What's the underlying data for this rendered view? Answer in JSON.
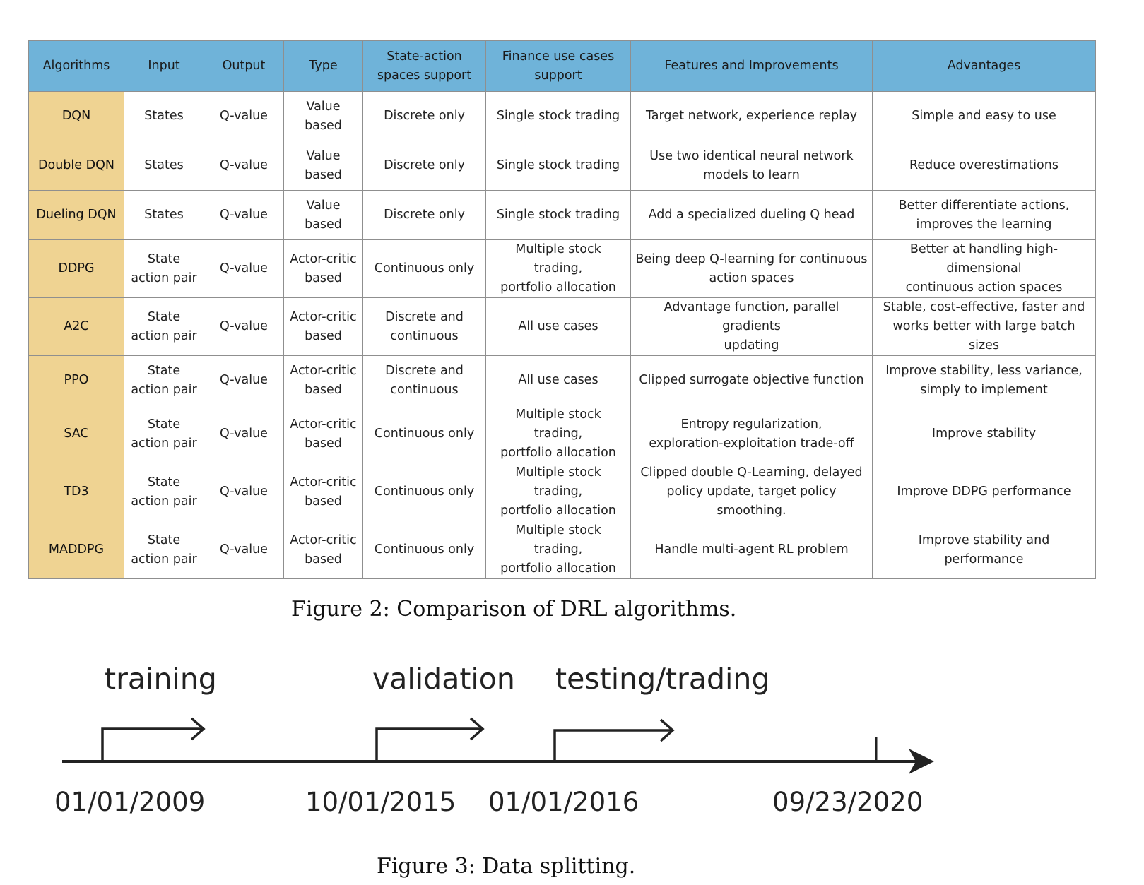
{
  "table": {
    "headers": [
      "Algorithms",
      "Input",
      "Output",
      "Type",
      "State-action\nspaces support",
      "Finance use cases\nsupport",
      "Features and Improvements",
      "Advantages"
    ],
    "rows": [
      [
        "DQN",
        "States",
        "Q-value",
        "Value\nbased",
        "Discrete only",
        "Single stock trading",
        "Target network, experience replay",
        "Simple and easy to use"
      ],
      [
        "Double DQN",
        "States",
        "Q-value",
        "Value\nbased",
        "Discrete only",
        "Single stock trading",
        "Use two identical neural network\nmodels to learn",
        "Reduce overestimations"
      ],
      [
        "Dueling DQN",
        "States",
        "Q-value",
        "Value\nbased",
        "Discrete only",
        "Single stock trading",
        "Add a specialized dueling Q head",
        "Better differentiate actions,\nimproves the learning"
      ],
      [
        "DDPG",
        "State\naction pair",
        "Q-value",
        "Actor-critic\nbased",
        "Continuous only",
        "Multiple stock trading,\nportfolio allocation",
        "Being deep Q-learning for continuous\naction spaces",
        "Better at handling high-dimensional\ncontinuous action spaces"
      ],
      [
        "A2C",
        "State\naction pair",
        "Q-value",
        "Actor-critic\nbased",
        "Discrete and\ncontinuous",
        "All use cases",
        "Advantage function, parallel gradients\nupdating",
        "Stable, cost-effective, faster and\nworks better with large batch sizes"
      ],
      [
        "PPO",
        "State\naction pair",
        "Q-value",
        "Actor-critic\nbased",
        "Discrete and\ncontinuous",
        "All use cases",
        "Clipped surrogate objective function",
        "Improve stability, less variance,\nsimply to implement"
      ],
      [
        "SAC",
        "State\naction pair",
        "Q-value",
        "Actor-critic\nbased",
        "Continuous only",
        "Multiple stock trading,\nportfolio allocation",
        "Entropy regularization,\nexploration-exploitation trade-off",
        "Improve stability"
      ],
      [
        "TD3",
        "State\naction pair",
        "Q-value",
        "Actor-critic\nbased",
        "Continuous only",
        "Multiple stock trading,\nportfolio allocation",
        "Clipped double Q-Learning, delayed\npolicy update, target policy smoothing.",
        "Improve DDPG performance"
      ],
      [
        "MADDPG",
        "State\naction pair",
        "Q-value",
        "Actor-critic\nbased",
        "Continuous only",
        "Multiple stock trading,\nportfolio allocation",
        "Handle multi-agent RL problem",
        "Improve stability and performance"
      ]
    ],
    "colors": {
      "header": "#6fb3d9",
      "algo_column": "#efd392",
      "border": "#8f8f8f"
    }
  },
  "figure2_caption": "Figure 2: Comparison of DRL algorithms.",
  "timeline": {
    "phases": [
      {
        "label": "training",
        "start": "01/01/2009"
      },
      {
        "label": "validation",
        "start": "10/01/2015"
      },
      {
        "label": "testing/trading",
        "start": "01/01/2016"
      }
    ],
    "end_date": "09/23/2020"
  },
  "figure3_caption": "Figure 3: Data splitting."
}
